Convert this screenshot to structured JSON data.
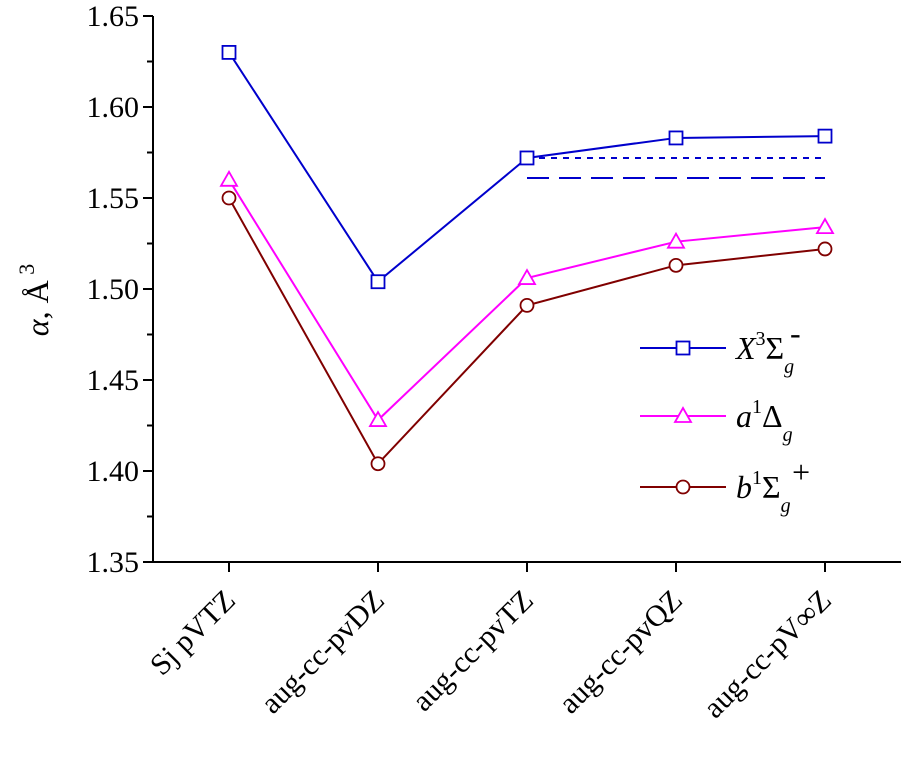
{
  "chart_data": {
    "type": "line",
    "categories": [
      "Sj pVTZ",
      "aug-cc-pvDZ",
      "aug-cc-pvTZ",
      "aug-cc-pvQZ",
      "aug-cc-pV∞Z"
    ],
    "ylabel": {
      "main": "α, Å",
      "sup": "3"
    },
    "ylim": [
      1.35,
      1.65
    ],
    "y_ticks": [
      "1.35",
      "1.40",
      "1.45",
      "1.50",
      "1.55",
      "1.60",
      "1.65"
    ],
    "grid": false,
    "legend_position": "right",
    "series": [
      {
        "name": "X3Σg-",
        "legend": {
          "base": "X",
          "pre_sup": "3",
          "sym": "Σ",
          "sub": "g",
          "sup": "-"
        },
        "values": [
          1.63,
          1.504,
          1.572,
          1.583,
          1.584
        ],
        "color": "#0000cc",
        "marker": "square"
      },
      {
        "name": "a1Δg",
        "legend": {
          "base": "a",
          "pre_sup": "1",
          "sym": "Δ",
          "sub": "g",
          "sup": ""
        },
        "values": [
          1.56,
          1.428,
          1.506,
          1.526,
          1.534
        ],
        "color": "#ff00ff",
        "marker": "triangle"
      },
      {
        "name": "b1Σg+",
        "legend": {
          "base": "b",
          "pre_sup": "1",
          "sym": "Σ",
          "sub": "g",
          "sup": "+"
        },
        "values": [
          1.55,
          1.404,
          1.491,
          1.513,
          1.522
        ],
        "color": "#800000",
        "marker": "circle"
      }
    ],
    "reference_lines": [
      {
        "y": 1.572,
        "x_from": 2,
        "x_to": 4,
        "style": "short-dash",
        "color": "#0000cc"
      },
      {
        "y": 1.561,
        "x_from": 2,
        "x_to": 4,
        "style": "long-dash",
        "color": "#0000cc"
      }
    ]
  }
}
